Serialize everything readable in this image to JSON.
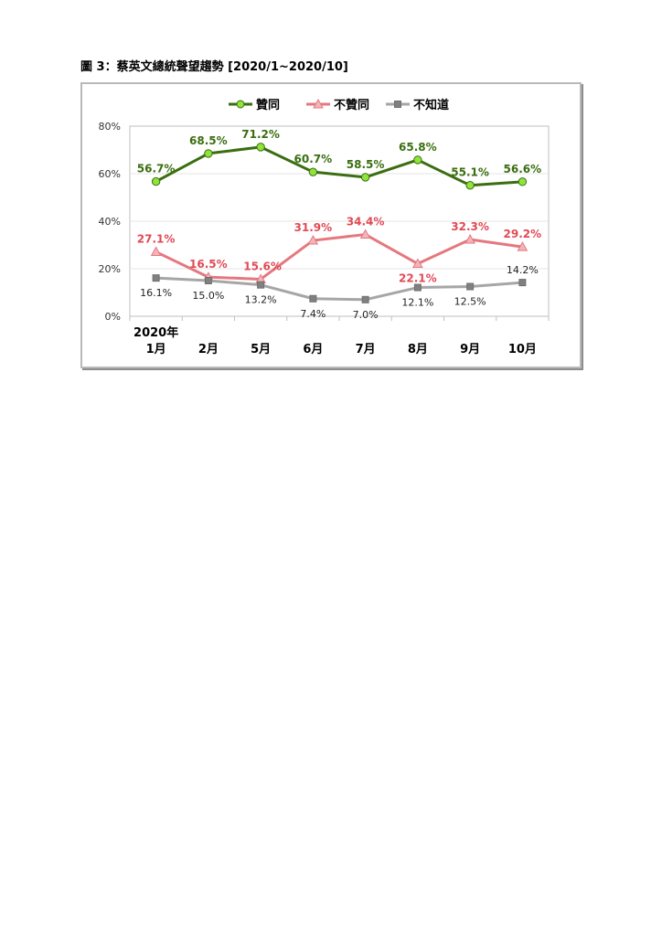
{
  "figure": {
    "title": "圖 3：蔡英文總統聲望趨勢  [2020/1~2020/10]"
  },
  "chart_data": {
    "type": "line",
    "categories": [
      "1月",
      "2月",
      "5月",
      "6月",
      "7月",
      "8月",
      "9月",
      "10月"
    ],
    "year_label": "2020年",
    "series": [
      {
        "name": "贊同",
        "values": [
          56.7,
          68.5,
          71.2,
          60.7,
          58.5,
          65.8,
          55.1,
          56.6
        ],
        "color": "#3a6e10",
        "marker_fill": "#8fe33a",
        "marker": "circle",
        "label_color": "#3a6e10"
      },
      {
        "name": "不贊同",
        "values": [
          27.1,
          16.5,
          15.6,
          31.9,
          34.4,
          22.1,
          32.3,
          29.2
        ],
        "color": "#e5787e",
        "marker_fill": "#f2b5b9",
        "marker": "triangle",
        "label_color": "#e04a55"
      },
      {
        "name": "不知道",
        "values": [
          16.1,
          15.0,
          13.2,
          7.4,
          7.0,
          12.1,
          12.5,
          14.2
        ],
        "color": "#a6a6a6",
        "marker_fill": "#808080",
        "marker": "square",
        "label_color": "#222222"
      }
    ],
    "labels": [
      [
        "56.7%",
        "68.5%",
        "71.2%",
        "60.7%",
        "58.5%",
        "65.8%",
        "55.1%",
        "56.6%"
      ],
      [
        "27.1%",
        "16.5%",
        "15.6%",
        "31.9%",
        "34.4%",
        "22.1%",
        "32.3%",
        "29.2%"
      ],
      [
        "16.1%",
        "15.0%",
        "13.2%",
        "7.4%",
        "7.0%",
        "12.1%",
        "12.5%",
        "14.2%"
      ]
    ],
    "yticks": [
      "0%",
      "20%",
      "40%",
      "60%",
      "80%"
    ],
    "ylim": [
      0,
      80
    ],
    "grid": true,
    "legend_position": "top"
  }
}
